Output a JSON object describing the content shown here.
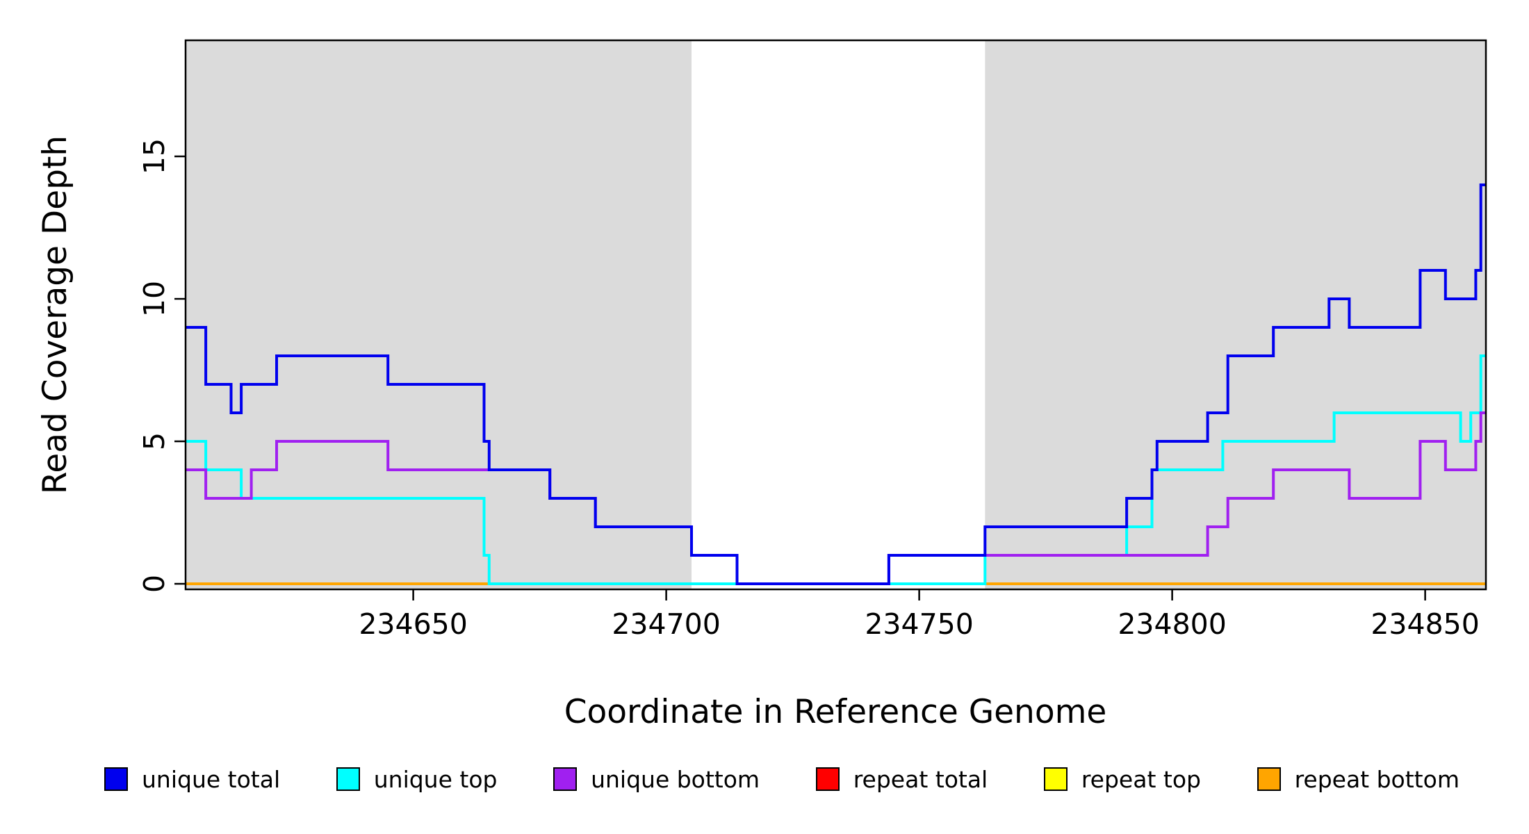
{
  "chart_data": {
    "type": "line",
    "variant": "step",
    "title": "",
    "xlabel": "Coordinate in Reference Genome",
    "ylabel": "Read Coverage Depth",
    "xlim": [
      234605,
      234862
    ],
    "ylim": [
      0,
      19
    ],
    "xticks": [
      234650,
      234700,
      234750,
      234800,
      234850
    ],
    "yticks": [
      0,
      5,
      10,
      15
    ],
    "grid": false,
    "plot_background": "#ffffff",
    "shaded_region_color": "#dbdbdb",
    "shaded_regions": [
      {
        "x0": 234605,
        "x1": 234705
      },
      {
        "x0": 234763,
        "x1": 234862
      }
    ],
    "draw_order": [
      "repeat total",
      "repeat top",
      "repeat bottom",
      "unique top",
      "unique bottom",
      "unique total"
    ],
    "series": [
      {
        "name": "unique total",
        "color": "#0000ee",
        "steps": [
          [
            234605,
            9
          ],
          [
            234609,
            7
          ],
          [
            234614,
            6
          ],
          [
            234616,
            7
          ],
          [
            234623,
            8
          ],
          [
            234645,
            7
          ],
          [
            234664,
            5
          ],
          [
            234665,
            4
          ],
          [
            234677,
            3
          ],
          [
            234686,
            2
          ],
          [
            234705,
            1
          ],
          [
            234714,
            0
          ],
          [
            234744,
            1
          ],
          [
            234763,
            2
          ],
          [
            234791,
            3
          ],
          [
            234796,
            4
          ],
          [
            234797,
            5
          ],
          [
            234807,
            6
          ],
          [
            234811,
            8
          ],
          [
            234820,
            9
          ],
          [
            234831,
            10
          ],
          [
            234835,
            9
          ],
          [
            234849,
            11
          ],
          [
            234854,
            10
          ],
          [
            234860,
            11
          ],
          [
            234861,
            14
          ]
        ]
      },
      {
        "name": "unique top",
        "color": "#00ffff",
        "steps": [
          [
            234605,
            5
          ],
          [
            234609,
            4
          ],
          [
            234616,
            3
          ],
          [
            234664,
            1
          ],
          [
            234665,
            0
          ],
          [
            234763,
            1
          ],
          [
            234791,
            2
          ],
          [
            234796,
            4
          ],
          [
            234810,
            5
          ],
          [
            234832,
            6
          ],
          [
            234857,
            5
          ],
          [
            234859,
            6
          ],
          [
            234861,
            8
          ]
        ]
      },
      {
        "name": "unique bottom",
        "color": "#a020f0",
        "steps": [
          [
            234605,
            4
          ],
          [
            234609,
            3
          ],
          [
            234618,
            4
          ],
          [
            234623,
            5
          ],
          [
            234645,
            4
          ],
          [
            234677,
            3
          ],
          [
            234686,
            2
          ],
          [
            234705,
            1
          ],
          [
            234714,
            0
          ],
          [
            234744,
            1
          ],
          [
            234807,
            2
          ],
          [
            234811,
            3
          ],
          [
            234820,
            4
          ],
          [
            234835,
            3
          ],
          [
            234849,
            5
          ],
          [
            234854,
            4
          ],
          [
            234860,
            5
          ],
          [
            234861,
            6
          ]
        ]
      },
      {
        "name": "repeat total",
        "color": "#ff0000",
        "steps": [
          [
            234605,
            0
          ]
        ]
      },
      {
        "name": "repeat top",
        "color": "#ffff00",
        "steps": [
          [
            234605,
            0
          ]
        ]
      },
      {
        "name": "repeat bottom",
        "color": "#ffa500",
        "steps": [
          [
            234605,
            0
          ]
        ]
      }
    ],
    "legend": {
      "position": "bottom",
      "entries": [
        {
          "label": "unique total",
          "color": "#0000ee"
        },
        {
          "label": "unique top",
          "color": "#00ffff"
        },
        {
          "label": "unique bottom",
          "color": "#a020f0"
        },
        {
          "label": "repeat total",
          "color": "#ff0000"
        },
        {
          "label": "repeat top",
          "color": "#ffff00"
        },
        {
          "label": "repeat bottom",
          "color": "#ffa500"
        }
      ]
    }
  }
}
